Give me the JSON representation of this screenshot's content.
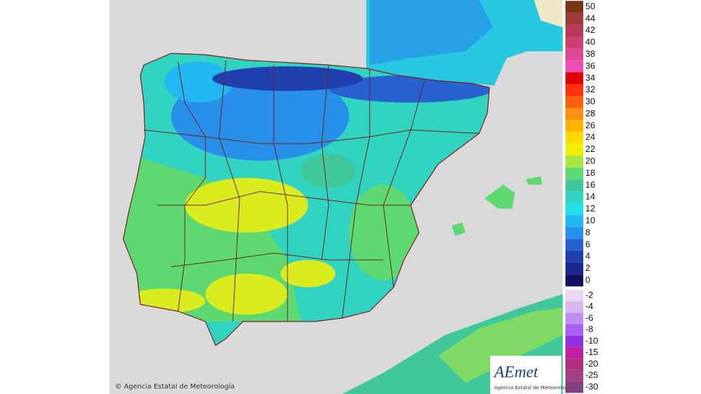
{
  "copyright": "© Agencia Estatal de Meteorología",
  "logo": {
    "name": "AEmet",
    "subtitle": "Agencia Estatal de Meteorología"
  },
  "legend": {
    "items": [
      {
        "value": 50,
        "color": "#7a3418"
      },
      {
        "value": 44,
        "color": "#9c3a36"
      },
      {
        "value": 42,
        "color": "#b83a55"
      },
      {
        "value": 40,
        "color": "#cc3f70"
      },
      {
        "value": 38,
        "color": "#de4890"
      },
      {
        "value": 36,
        "color": "#f04cb4"
      },
      {
        "value": 34,
        "color": "#e00000"
      },
      {
        "value": 32,
        "color": "#ff3010"
      },
      {
        "value": 30,
        "color": "#ff6010"
      },
      {
        "value": 28,
        "color": "#ff9010"
      },
      {
        "value": 26,
        "color": "#ffb400"
      },
      {
        "value": 24,
        "color": "#ffd800"
      },
      {
        "value": 22,
        "color": "#eef000"
      },
      {
        "value": 20,
        "color": "#a8e640"
      },
      {
        "value": 18,
        "color": "#5ed870"
      },
      {
        "value": 16,
        "color": "#40c89c"
      },
      {
        "value": 14,
        "color": "#30d4c0"
      },
      {
        "value": 12,
        "color": "#20e0e8"
      },
      {
        "value": 10,
        "color": "#20b8f0"
      },
      {
        "value": 8,
        "color": "#2890e8"
      },
      {
        "value": 6,
        "color": "#2862d0"
      },
      {
        "value": 4,
        "color": "#2040b0"
      },
      {
        "value": 2,
        "color": "#182890"
      },
      {
        "value": 0,
        "color": "#101060"
      },
      {
        "value": -2,
        "color": "#e8d8f0"
      },
      {
        "value": -4,
        "color": "#d8b8f0"
      },
      {
        "value": -6,
        "color": "#c090f0"
      },
      {
        "value": -8,
        "color": "#a860f0"
      },
      {
        "value": -10,
        "color": "#9030e0"
      },
      {
        "value": -15,
        "color": "#c020a0"
      },
      {
        "value": -20,
        "color": "#b03080"
      },
      {
        "value": -25,
        "color": "#a04080"
      },
      {
        "value": -30,
        "color": "#804080"
      }
    ]
  }
}
